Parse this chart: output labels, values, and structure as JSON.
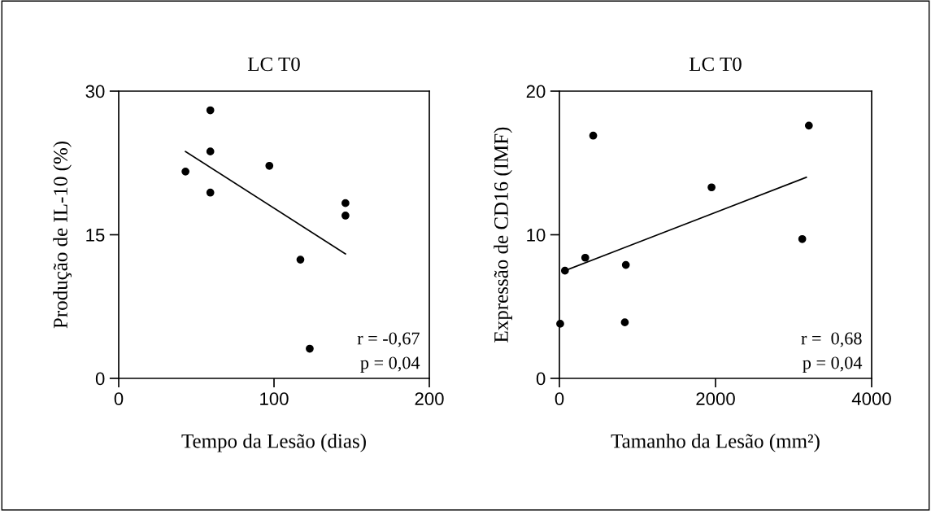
{
  "chart_data": [
    {
      "type": "scatter",
      "title": "LC T0",
      "xlabel": "Tempo da Lesão (dias)",
      "ylabel": "Produção de IL-10 (%)",
      "xlim": [
        0,
        200
      ],
      "ylim": [
        0,
        30
      ],
      "xticks": [
        0,
        100,
        200
      ],
      "yticks": [
        0,
        15,
        30
      ],
      "grid": false,
      "series": [
        {
          "marker": "circle",
          "color": "#000000",
          "x": [
            43,
            59,
            59,
            59,
            97,
            117,
            123,
            146,
            146
          ],
          "values": [
            21.6,
            28.0,
            23.7,
            19.4,
            22.2,
            12.4,
            3.1,
            18.3,
            17.0
          ]
        },
        {
          "type": "line",
          "marker": "none",
          "color": "#000000",
          "x": [
            43,
            146
          ],
          "values": [
            23.7,
            13.0
          ]
        }
      ],
      "annotations": [
        "r = -0,67",
        "p = 0,04"
      ]
    },
    {
      "type": "scatter",
      "title": "LC T0",
      "xlabel": "Tamanho da Lesão (mm²)",
      "ylabel": "Expressão de CD16 (IMF)",
      "xlim": [
        0,
        4000
      ],
      "ylim": [
        0,
        20
      ],
      "xticks": [
        0,
        2000,
        4000
      ],
      "yticks": [
        0,
        10,
        20
      ],
      "grid": false,
      "series": [
        {
          "marker": "circle",
          "color": "#000000",
          "x": [
            10,
            71,
            331,
            433,
            851,
            838,
            1949,
            3111,
            3196
          ],
          "values": [
            3.8,
            7.5,
            8.4,
            16.9,
            7.9,
            3.9,
            13.3,
            9.7,
            17.6
          ]
        },
        {
          "type": "line",
          "marker": "none",
          "color": "#000000",
          "x": [
            71,
            3163
          ],
          "values": [
            7.5,
            14.0
          ]
        }
      ],
      "annotations": [
        "r =  0,68",
        "p = 0,04"
      ]
    }
  ]
}
